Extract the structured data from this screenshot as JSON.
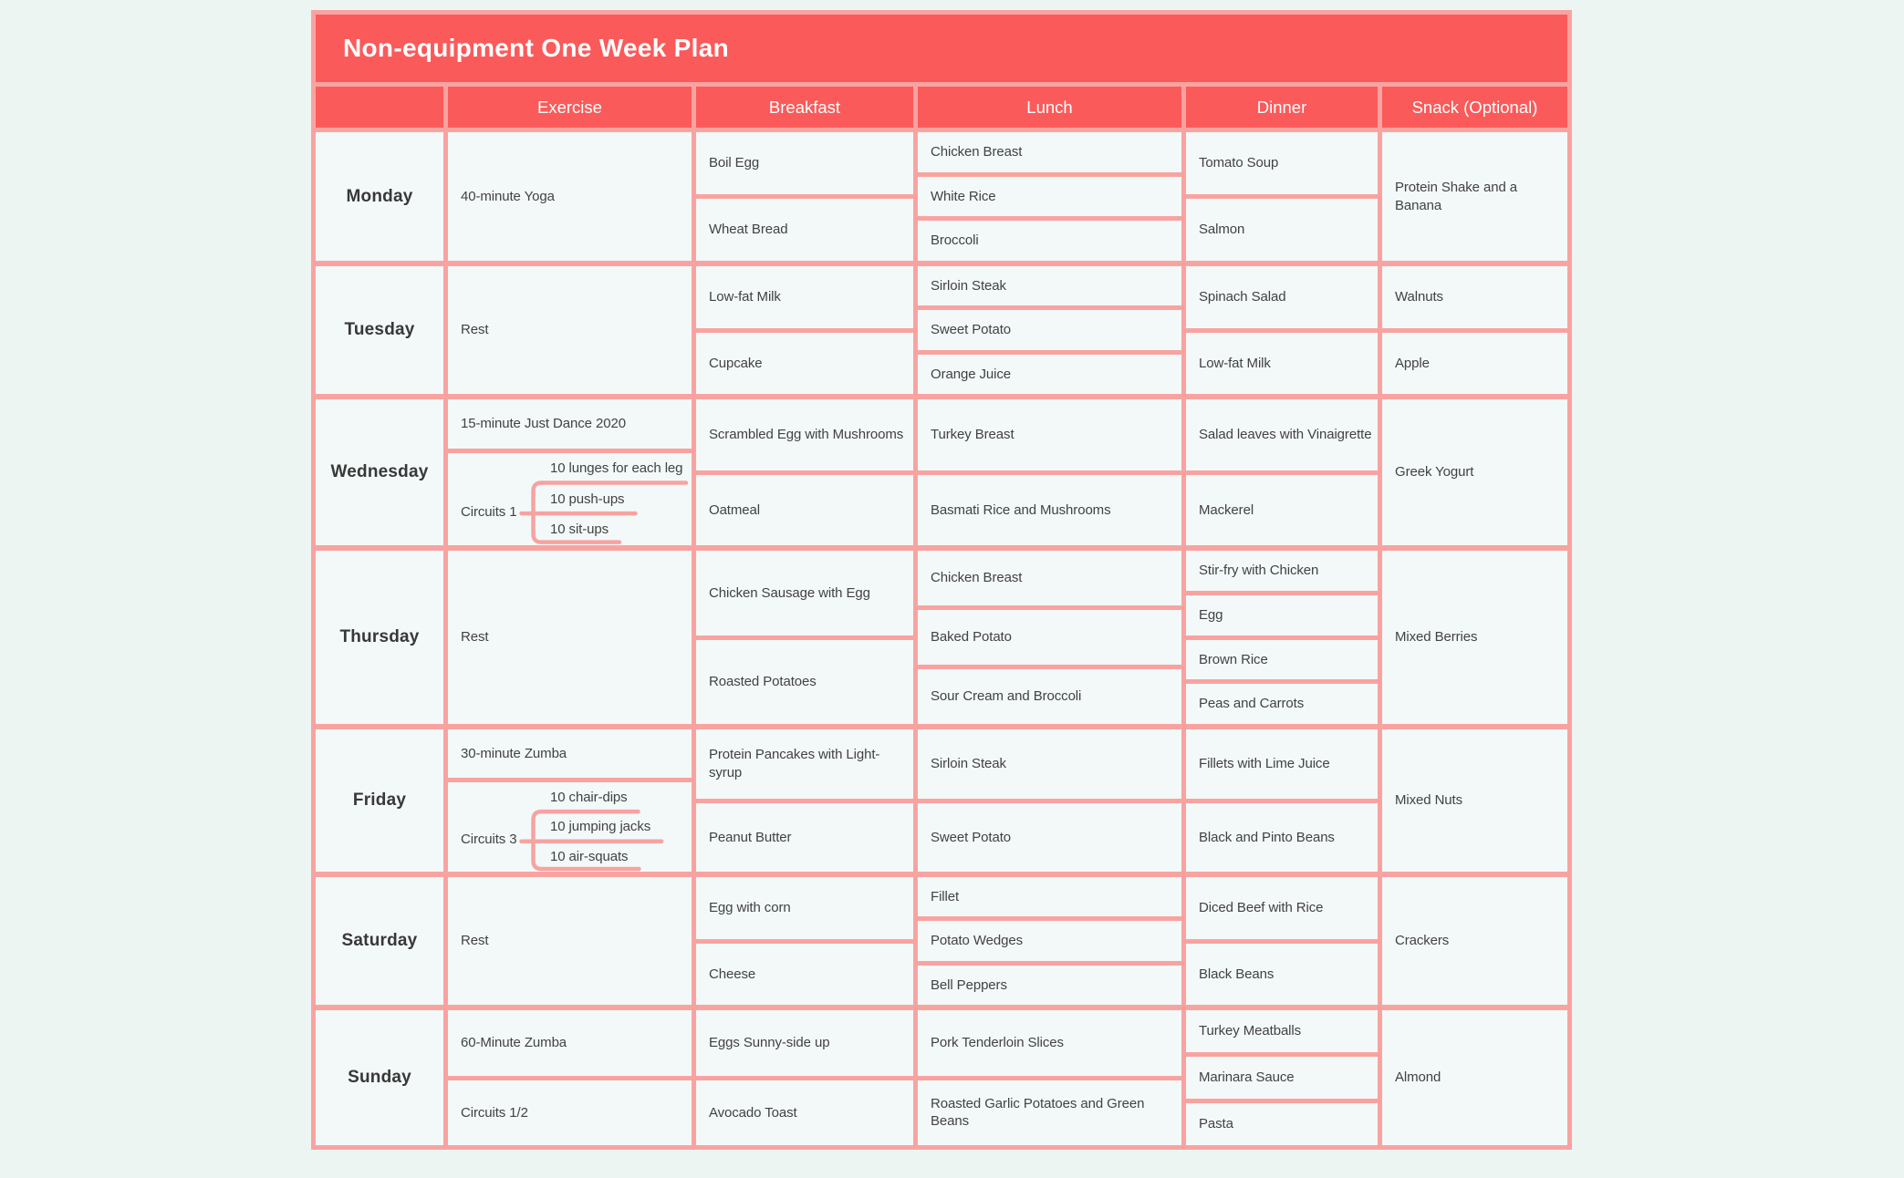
{
  "title": "Non-equipment One Week Plan",
  "columns": [
    "",
    "Exercise",
    "Breakfast",
    "Lunch",
    "Dinner",
    "Snack (Optional)"
  ],
  "colors": {
    "header_red": "#fb5a5a",
    "border_pink": "#f9a3a1",
    "bracket_line_pink": "#f7a3a1",
    "page_bg": "#edf5f3",
    "cell_bg": "#f3f9f8",
    "text": "#424242"
  },
  "days": [
    {
      "day": "Monday",
      "exercise": [
        {
          "text": "40-minute Yoga"
        }
      ],
      "breakfast": [
        "Boil Egg",
        "Wheat Bread"
      ],
      "lunch": [
        "Chicken Breast",
        "White Rice",
        "Broccoli"
      ],
      "dinner": [
        "Tomato Soup",
        "Salmon"
      ],
      "snack": [
        "Protein Shake and a Banana"
      ]
    },
    {
      "day": "Tuesday",
      "exercise": [
        {
          "text": "Rest"
        }
      ],
      "breakfast": [
        "Low-fat Milk",
        "Cupcake"
      ],
      "lunch": [
        "Sirloin Steak",
        "Sweet Potato",
        "Orange Juice"
      ],
      "dinner": [
        "Spinach Salad",
        "Low-fat Milk"
      ],
      "snack": [
        "Walnuts",
        "Apple"
      ]
    },
    {
      "day": "Wednesday",
      "exercise": [
        {
          "text": "15-minute Just Dance 2020"
        },
        {
          "circuit": {
            "label": "Circuits 1",
            "items": [
              "10 lunges for each leg",
              "10 push-ups",
              "10 sit-ups"
            ]
          }
        }
      ],
      "breakfast": [
        "Scrambled Egg with Mushrooms",
        "Oatmeal"
      ],
      "lunch": [
        "Turkey Breast",
        "Basmati Rice and Mushrooms"
      ],
      "dinner": [
        "Salad leaves with Vinaigrette",
        "Mackerel"
      ],
      "snack": [
        "Greek Yogurt"
      ]
    },
    {
      "day": "Thursday",
      "exercise": [
        {
          "text": "Rest"
        }
      ],
      "breakfast": [
        "Chicken Sausage with Egg",
        "Roasted Potatoes"
      ],
      "lunch": [
        "Chicken Breast",
        "Baked Potato",
        "Sour Cream and Broccoli"
      ],
      "dinner": [
        "Stir-fry with Chicken",
        "Egg",
        "Brown Rice",
        "Peas and Carrots"
      ],
      "snack": [
        "Mixed Berries"
      ]
    },
    {
      "day": "Friday",
      "exercise": [
        {
          "text": "30-minute Zumba"
        },
        {
          "circuit": {
            "label": "Circuits 3",
            "items": [
              "10 chair-dips",
              "10 jumping jacks",
              "10 air-squats"
            ]
          }
        }
      ],
      "breakfast": [
        "Protein Pancakes with Light-syrup",
        "Peanut Butter"
      ],
      "lunch": [
        "Sirloin Steak",
        "Sweet Potato"
      ],
      "dinner": [
        "Fillets with Lime Juice",
        "Black and Pinto Beans"
      ],
      "snack": [
        "Mixed Nuts"
      ]
    },
    {
      "day": "Saturday",
      "exercise": [
        {
          "text": "Rest"
        }
      ],
      "breakfast": [
        "Egg with corn",
        "Cheese"
      ],
      "lunch": [
        "Fillet",
        "Potato Wedges",
        "Bell Peppers"
      ],
      "dinner": [
        "Diced Beef with Rice",
        "Black Beans"
      ],
      "snack": [
        "Crackers"
      ]
    },
    {
      "day": "Sunday",
      "exercise": [
        {
          "text": "60-Minute Zumba"
        },
        {
          "text": "Circuits 1/2"
        }
      ],
      "breakfast": [
        "Eggs Sunny-side up",
        "Avocado Toast"
      ],
      "lunch": [
        "Pork Tenderloin Slices",
        "Roasted Garlic Potatoes and Green Beans"
      ],
      "dinner": [
        "Turkey Meatballs",
        "Marinara Sauce",
        "Pasta"
      ],
      "snack": [
        "Almond"
      ]
    }
  ]
}
